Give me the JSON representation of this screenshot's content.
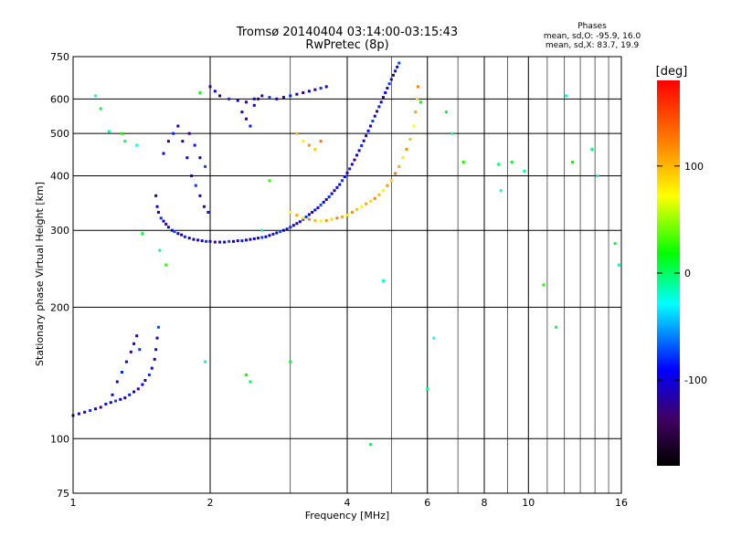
{
  "chart_data": {
    "type": "scatter",
    "title": "Tromsø 20140404 03:14:00-03:15:43",
    "subtitle": "RwPretec (8p)",
    "xlabel": "Frequency [MHz]",
    "ylabel": "Stationary phase Virtual Height [km]",
    "x_scale": "log",
    "y_scale": "log",
    "xlim": [
      1,
      16
    ],
    "ylim": [
      75,
      750
    ],
    "x_ticks": [
      1,
      2,
      4,
      6,
      8,
      10,
      16
    ],
    "x_tick_labels": [
      "1",
      "2",
      "4",
      "6",
      "8",
      "10",
      "16"
    ],
    "x_minor_ticks": [
      3,
      5,
      7,
      9,
      11,
      12,
      13,
      14,
      15
    ],
    "y_ticks": [
      75,
      100,
      200,
      300,
      400,
      500,
      600,
      750
    ],
    "y_tick_labels": [
      "75",
      "100",
      "200",
      "300",
      "400",
      "500",
      "600",
      "750"
    ],
    "grid": true,
    "legend": {
      "title": "Phases",
      "lines": [
        "mean, sd,O: -95.9, 16.0",
        "mean, sd,X: 83.7, 19.9"
      ],
      "placement": "top-right"
    },
    "colorbar": {
      "label": "[deg]",
      "ticks": [
        100,
        0,
        -100
      ],
      "tick_labels": [
        "100",
        "0",
        "-100"
      ],
      "range": [
        -180,
        180
      ]
    },
    "series": [
      {
        "trace": "lower",
        "phase_deg": -100,
        "x": [
          1.0,
          1.03,
          1.06,
          1.09,
          1.12,
          1.15,
          1.18,
          1.21,
          1.24,
          1.27,
          1.3,
          1.33,
          1.36,
          1.39,
          1.42,
          1.44,
          1.47,
          1.49,
          1.51,
          1.52,
          1.53,
          1.54,
          1.22,
          1.25,
          1.28,
          1.31,
          1.34,
          1.36,
          1.38,
          1.4
        ],
        "y": [
          113,
          114,
          115,
          116,
          117,
          118,
          120,
          121,
          122,
          123,
          124,
          126,
          128,
          130,
          133,
          136,
          140,
          145,
          152,
          160,
          170,
          180,
          126,
          135,
          142,
          150,
          158,
          165,
          172,
          160
        ]
      },
      {
        "trace": "o-mode",
        "phase_deg": -100,
        "x": [
          1.52,
          1.53,
          1.54,
          1.56,
          1.58,
          1.6,
          1.62,
          1.65,
          1.67,
          1.7,
          1.73,
          1.76,
          1.8,
          1.84,
          1.88,
          1.92,
          1.96,
          2.0,
          2.05,
          2.1,
          2.15,
          2.2,
          2.25,
          2.3,
          2.35,
          2.4,
          2.45,
          2.5,
          2.55,
          2.6,
          2.65,
          2.7,
          2.75,
          2.8,
          2.85,
          2.9,
          2.95,
          3.0,
          3.05,
          3.1,
          3.15,
          3.2,
          3.25,
          3.3,
          3.35,
          3.4,
          3.45,
          3.5,
          3.55,
          3.6,
          3.65,
          3.7,
          3.75,
          3.8,
          3.85,
          3.9,
          3.95,
          4.0,
          4.05,
          4.1,
          4.15,
          4.2,
          4.25,
          4.3,
          4.35,
          4.4,
          4.45,
          4.5,
          4.55,
          4.6,
          4.65,
          4.7,
          4.75,
          4.8,
          4.85,
          4.9,
          4.95,
          5.0,
          5.05,
          5.1,
          5.15,
          5.2,
          1.58,
          1.62,
          1.66,
          1.7,
          1.74,
          1.78,
          1.82,
          1.86,
          1.9,
          1.94,
          1.98
        ],
        "y": [
          360,
          340,
          330,
          320,
          315,
          310,
          305,
          300,
          298,
          295,
          293,
          290,
          288,
          286,
          285,
          284,
          283,
          283,
          282,
          282,
          282,
          283,
          283,
          284,
          284,
          285,
          286,
          287,
          288,
          289,
          290,
          292,
          294,
          296,
          298,
          300,
          302,
          305,
          308,
          311,
          314,
          318,
          322,
          326,
          330,
          334,
          338,
          343,
          348,
          353,
          358,
          364,
          370,
          376,
          382,
          390,
          398,
          406,
          415,
          425,
          435,
          446,
          457,
          469,
          481,
          494,
          507,
          520,
          534,
          548,
          562,
          576,
          590,
          605,
          620,
          635,
          650,
          665,
          680,
          695,
          710,
          725,
          450,
          480,
          500,
          520,
          480,
          440,
          400,
          380,
          360,
          340,
          330
        ]
      },
      {
        "trace": "top-band",
        "phase_deg": -100,
        "x": [
          2.0,
          2.05,
          2.1,
          2.2,
          2.3,
          2.4,
          2.5,
          2.6,
          2.7,
          2.8,
          2.9,
          3.0,
          3.1,
          3.2,
          3.3,
          3.4,
          3.5,
          3.6,
          1.8,
          1.85,
          1.9,
          1.95,
          2.35,
          2.4,
          2.45,
          2.5,
          2.55
        ],
        "y": [
          640,
          625,
          610,
          600,
          595,
          590,
          600,
          610,
          605,
          600,
          605,
          610,
          615,
          620,
          625,
          630,
          635,
          640,
          500,
          470,
          440,
          420,
          560,
          540,
          520,
          580,
          600
        ]
      },
      {
        "trace": "x-mode",
        "phase_deg": 100,
        "x": [
          3.0,
          3.1,
          3.2,
          3.3,
          3.4,
          3.5,
          3.6,
          3.7,
          3.8,
          3.9,
          4.0,
          4.1,
          4.2,
          4.3,
          4.4,
          4.5,
          4.6,
          4.7,
          4.8,
          4.9,
          5.0,
          5.1,
          5.2,
          5.3,
          5.4,
          5.5,
          5.6,
          5.65,
          5.7,
          5.72,
          3.1,
          3.2,
          3.3,
          3.4,
          3.5
        ],
        "y": [
          330,
          325,
          320,
          318,
          316,
          315,
          316,
          318,
          320,
          322,
          325,
          330,
          335,
          340,
          345,
          350,
          355,
          362,
          370,
          380,
          390,
          405,
          420,
          440,
          460,
          485,
          520,
          560,
          600,
          640,
          500,
          480,
          470,
          460,
          480
        ]
      },
      {
        "trace": "scattered",
        "phase_deg": 0,
        "x": [
          1.12,
          1.15,
          1.2,
          1.28,
          1.3,
          1.38,
          1.42,
          1.55,
          1.6,
          4.5,
          4.8,
          5.8,
          6.0,
          6.2,
          6.6,
          6.8,
          7.2,
          8.6,
          8.7,
          9.2,
          9.8,
          10.8,
          11.5,
          12.1,
          12.5,
          13.8,
          14.2,
          15.5,
          15.8,
          2.4,
          2.45,
          1.95,
          1.9,
          2.6,
          2.7,
          3.0
        ],
        "y": [
          610,
          570,
          505,
          500,
          480,
          470,
          295,
          270,
          250,
          97,
          230,
          590,
          130,
          170,
          560,
          500,
          430,
          425,
          370,
          430,
          410,
          225,
          180,
          610,
          430,
          460,
          400,
          280,
          250,
          140,
          135,
          150,
          620,
          300,
          390,
          150
        ]
      }
    ]
  }
}
